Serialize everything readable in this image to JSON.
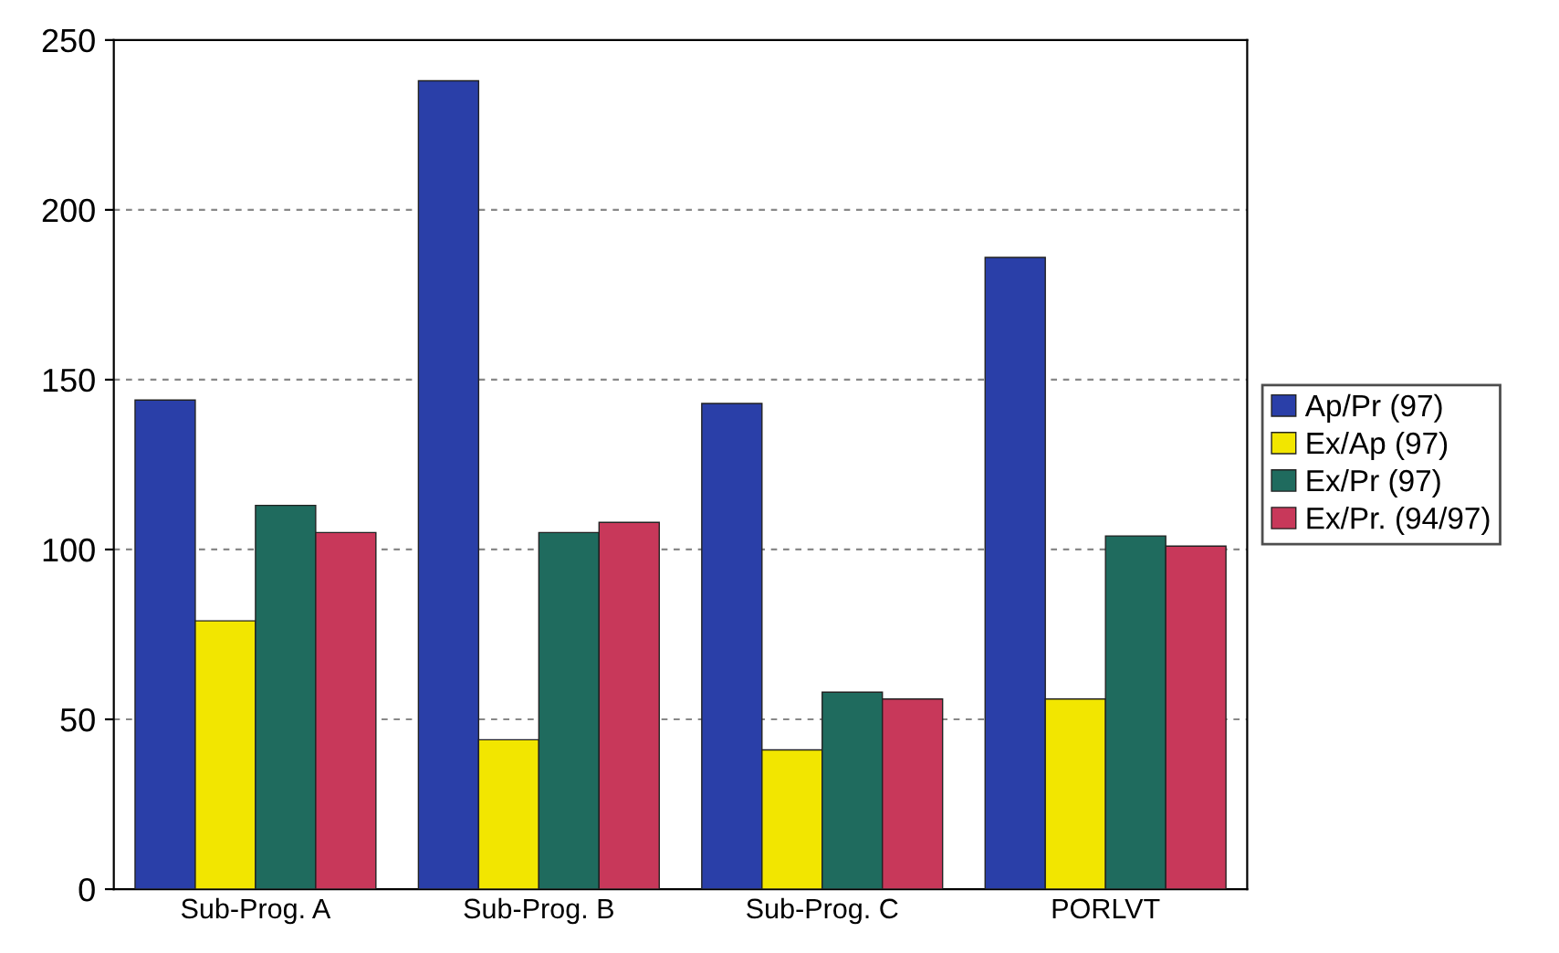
{
  "chart_data": {
    "type": "bar",
    "categories": [
      "Sub-Prog. A",
      "Sub-Prog. B",
      "Sub-Prog. C",
      "PORLVT"
    ],
    "series": [
      {
        "name": "Ap/Pr (97)",
        "color": "#2a3fa8",
        "values": [
          144,
          238,
          143,
          186
        ]
      },
      {
        "name": "Ex/Ap (97)",
        "color": "#f2e600",
        "values": [
          79,
          44,
          41,
          56
        ]
      },
      {
        "name": "Ex/Pr (97)",
        "color": "#1f6b5e",
        "values": [
          113,
          105,
          58,
          104
        ]
      },
      {
        "name": "Ex/Pr. (94/97)",
        "color": "#c8385a",
        "values": [
          105,
          108,
          56,
          101
        ]
      }
    ],
    "ylim": [
      0,
      250
    ],
    "yticks": [
      0,
      50,
      100,
      150,
      200,
      250
    ],
    "grid": "y",
    "legend": "right"
  }
}
